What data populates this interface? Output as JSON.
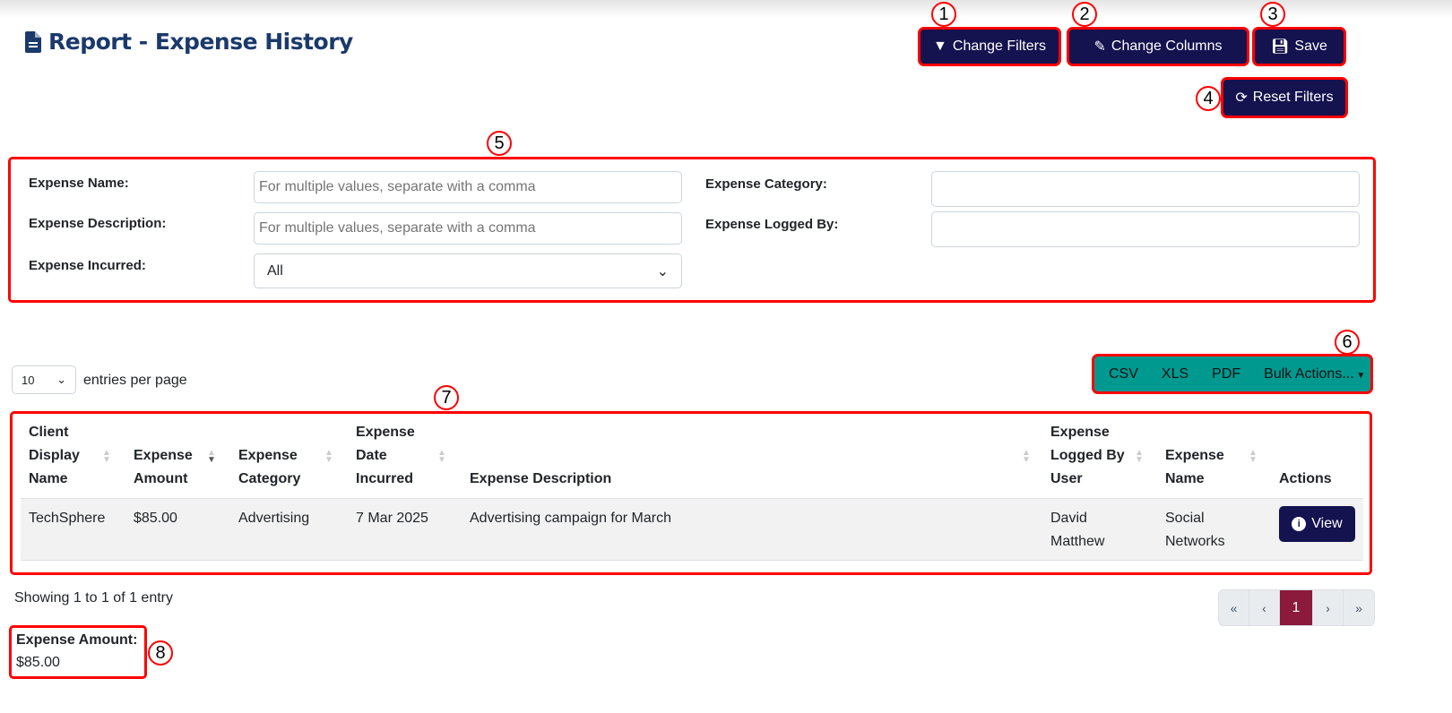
{
  "page": {
    "title": "Report - Expense History"
  },
  "toolbar": {
    "change_filters": "Change Filters",
    "change_columns": "Change Columns",
    "save": "Save",
    "reset_filters": "Reset Filters"
  },
  "annotations": [
    "1",
    "2",
    "3",
    "4",
    "5",
    "6",
    "7",
    "8"
  ],
  "filters": {
    "expense_name_label": "Expense Name:",
    "expense_name_placeholder": "For multiple values, separate with a comma",
    "expense_description_label": "Expense Description:",
    "expense_description_placeholder": "For multiple values, separate with a comma",
    "expense_incurred_label": "Expense Incurred:",
    "expense_incurred_value": "All",
    "expense_category_label": "Expense Category:",
    "expense_category_value": "",
    "expense_logged_by_label": "Expense Logged By:",
    "expense_logged_by_value": ""
  },
  "entries": {
    "value": "10",
    "label": "entries per page"
  },
  "export": {
    "csv": "CSV",
    "xls": "XLS",
    "pdf": "PDF",
    "bulk": "Bulk Actions..."
  },
  "table": {
    "headers": [
      [
        "Client",
        "Display",
        "Name"
      ],
      [
        "Expense",
        "Amount"
      ],
      [
        "Expense",
        "Category"
      ],
      [
        "Expense",
        "Date",
        "Incurred"
      ],
      [
        "Expense Description"
      ],
      [
        "Expense",
        "Logged By",
        "User"
      ],
      [
        "Expense",
        "Name"
      ],
      [
        "Actions"
      ]
    ],
    "rows": [
      {
        "client": "TechSphere",
        "amount": "$85.00",
        "category": "Advertising",
        "date": "7 Mar 2025",
        "description": "Advertising campaign for March",
        "logged_by": [
          "David",
          "Matthew"
        ],
        "name": [
          "Social",
          "Networks"
        ],
        "action": "View"
      }
    ]
  },
  "footer": {
    "showing": "Showing 1 to 1 of 1 entry"
  },
  "pagination": {
    "first": "«",
    "prev": "‹",
    "current": "1",
    "next": "›",
    "last": "»"
  },
  "summary": {
    "label": "Expense Amount:",
    "value": "$85.00"
  },
  "colors": {
    "primary": "#14124f",
    "export": "#009990",
    "active_page": "#8b1a3c",
    "title": "#1b3a6b",
    "annotation": "#ff0000"
  }
}
